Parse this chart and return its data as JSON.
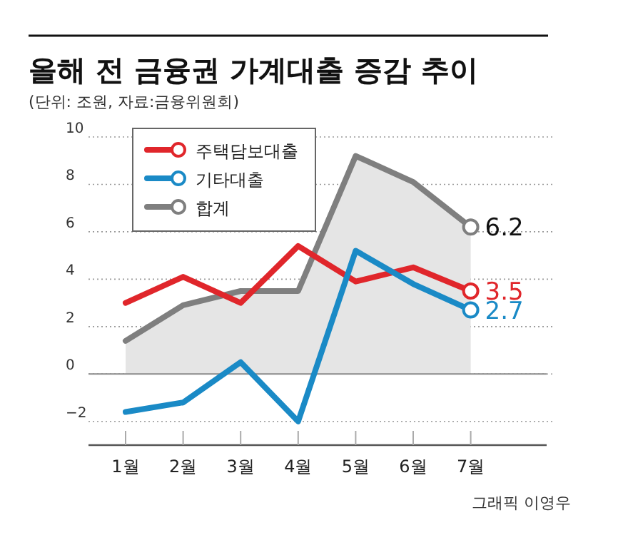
{
  "chart_data": {
    "type": "line",
    "title": "올해 전 금융권 가계대출 증감 추이",
    "subtitle": "(단위: 조원, 자료:금융위원회)",
    "categories": [
      "1월",
      "2월",
      "3월",
      "4월",
      "5월",
      "6월",
      "7월"
    ],
    "series": [
      {
        "name": "주택담보대출",
        "color": "#e0262b",
        "values": [
          3.0,
          4.1,
          3.0,
          5.4,
          3.9,
          4.5,
          3.5
        ],
        "value_labels": [
          null,
          null,
          null,
          null,
          null,
          null,
          "3.5"
        ]
      },
      {
        "name": "기타대출",
        "color": "#1a8ac6",
        "values": [
          -1.6,
          -1.2,
          0.5,
          -2.0,
          5.2,
          3.8,
          2.7
        ],
        "value_labels": [
          null,
          null,
          null,
          null,
          null,
          null,
          "2.7"
        ]
      },
      {
        "name": "합계",
        "type": "area",
        "color": "#7f7f7f",
        "values": [
          1.4,
          2.9,
          3.5,
          3.5,
          9.2,
          8.1,
          6.2
        ],
        "value_labels": [
          null,
          null,
          null,
          null,
          null,
          null,
          "6.2"
        ]
      }
    ],
    "ylim": [
      -3,
      10
    ],
    "yticks": [
      -2,
      0,
      2,
      4,
      6,
      8,
      10
    ],
    "grid": "y",
    "legend": "top left",
    "ref_lines": [
      {
        "axis": "y",
        "value": 0,
        "color": "#888888"
      }
    ],
    "annotations": [
      "그래픽 이영우"
    ]
  }
}
